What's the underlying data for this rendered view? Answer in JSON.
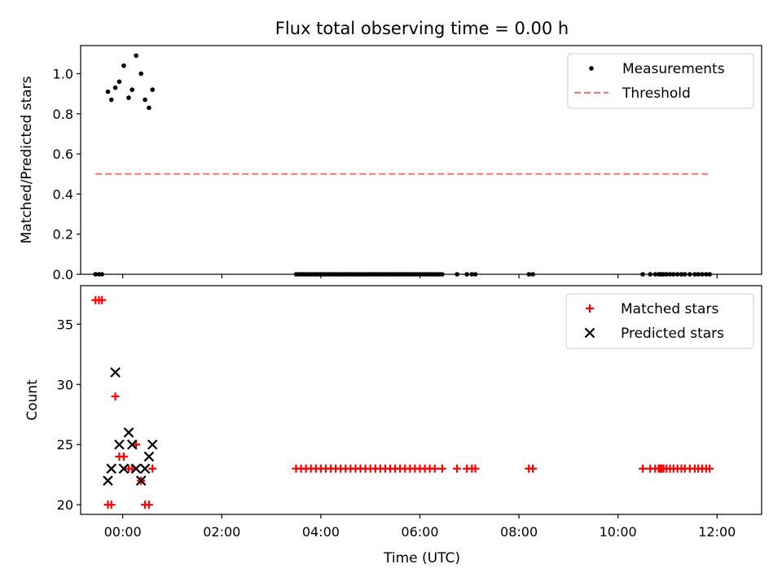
{
  "figure": {
    "title": "Flux total observing time = 0.00 h",
    "xlabel": "Time (UTC)"
  },
  "colors": {
    "measurement": "#000000",
    "threshold": "#ff7070",
    "matched": "#ff0000",
    "predicted": "#000000"
  },
  "chart_data": [
    {
      "type": "scatter",
      "title": "Flux total observing time = 0.00 h",
      "xlabel": "Time (UTC)",
      "ylabel": "Matched/Predicted stars",
      "xlim": [
        -0.85,
        12.9
      ],
      "ylim": [
        0,
        1.14
      ],
      "xticks": [
        0,
        2,
        4,
        6,
        8,
        10,
        12
      ],
      "xtick_labels": [
        "00:00",
        "02:00",
        "04:00",
        "06:00",
        "08:00",
        "10:00",
        "12:00"
      ],
      "yticks": [
        0.0,
        0.2,
        0.4,
        0.6,
        0.8,
        1.0
      ],
      "ytick_labels": [
        "0.0",
        "0.2",
        "0.4",
        "0.6",
        "0.8",
        "1.0"
      ],
      "legend_position": "top-right",
      "series": [
        {
          "name": "Measurements",
          "marker": "dot",
          "x": [
            -0.3,
            -0.23,
            -0.15,
            -0.07,
            0.02,
            0.12,
            0.19,
            0.27,
            0.37,
            0.45,
            0.53,
            0.6,
            -0.55,
            -0.48,
            -0.42,
            3.5,
            3.55,
            3.6,
            3.65,
            3.7,
            3.75,
            3.8,
            3.85,
            3.9,
            3.95,
            4.0,
            4.05,
            4.1,
            4.15,
            4.2,
            4.25,
            4.3,
            4.35,
            4.4,
            4.45,
            4.5,
            4.55,
            4.6,
            4.65,
            4.7,
            4.75,
            4.8,
            4.85,
            4.9,
            4.95,
            5.0,
            5.05,
            5.1,
            5.15,
            5.2,
            5.25,
            5.3,
            5.35,
            5.4,
            5.45,
            5.5,
            5.55,
            5.6,
            5.65,
            5.7,
            5.75,
            5.8,
            5.85,
            5.9,
            5.95,
            6.0,
            6.05,
            6.1,
            6.15,
            6.2,
            6.25,
            6.3,
            6.35,
            6.4,
            6.45,
            6.75,
            6.95,
            7.05,
            7.12,
            8.2,
            8.28,
            10.5,
            10.65,
            10.75,
            10.82,
            10.85,
            10.88,
            10.92,
            10.98,
            11.05,
            11.12,
            11.2,
            11.28,
            11.35,
            11.45,
            11.55,
            11.62,
            11.7,
            11.78,
            11.85
          ],
          "y": [
            0.91,
            0.87,
            0.93,
            0.96,
            1.04,
            0.88,
            0.92,
            1.09,
            1.0,
            0.87,
            0.83,
            0.92,
            0,
            0,
            0,
            0,
            0,
            0,
            0,
            0,
            0,
            0,
            0,
            0,
            0,
            0,
            0,
            0,
            0,
            0,
            0,
            0,
            0,
            0,
            0,
            0,
            0,
            0,
            0,
            0,
            0,
            0,
            0,
            0,
            0,
            0,
            0,
            0,
            0,
            0,
            0,
            0,
            0,
            0,
            0,
            0,
            0,
            0,
            0,
            0,
            0,
            0,
            0,
            0,
            0,
            0,
            0,
            0,
            0,
            0,
            0,
            0,
            0,
            0,
            0,
            0,
            0,
            0,
            0,
            0,
            0,
            0,
            0,
            0,
            0,
            0,
            0,
            0,
            0,
            0,
            0,
            0,
            0,
            0,
            0,
            0,
            0,
            0,
            0,
            0
          ]
        },
        {
          "name": "Threshold",
          "marker": "dashed-line",
          "x": [
            -0.55,
            11.85
          ],
          "y": [
            0.5,
            0.5
          ]
        }
      ]
    },
    {
      "type": "scatter",
      "xlabel": "Time (UTC)",
      "ylabel": "Count",
      "xlim": [
        -0.85,
        12.9
      ],
      "ylim": [
        19.2,
        38.2
      ],
      "xticks": [
        0,
        2,
        4,
        6,
        8,
        10,
        12
      ],
      "xtick_labels": [
        "00:00",
        "02:00",
        "04:00",
        "06:00",
        "08:00",
        "10:00",
        "12:00"
      ],
      "yticks": [
        20,
        25,
        30,
        35
      ],
      "ytick_labels": [
        "20",
        "25",
        "30",
        "35"
      ],
      "legend_position": "top-right",
      "series": [
        {
          "name": "Matched stars",
          "marker": "plus",
          "x": [
            -0.55,
            -0.48,
            -0.42,
            -0.3,
            -0.23,
            -0.15,
            -0.07,
            0.02,
            0.12,
            0.19,
            0.27,
            0.37,
            0.45,
            0.53,
            0.6,
            3.5,
            3.6,
            3.7,
            3.8,
            3.9,
            4.0,
            4.1,
            4.2,
            4.3,
            4.4,
            4.5,
            4.6,
            4.7,
            4.8,
            4.9,
            5.0,
            5.1,
            5.2,
            5.3,
            5.4,
            5.5,
            5.6,
            5.7,
            5.8,
            5.9,
            6.0,
            6.1,
            6.2,
            6.3,
            6.45,
            6.75,
            6.95,
            7.05,
            7.12,
            8.2,
            8.28,
            10.5,
            10.65,
            10.75,
            10.82,
            10.85,
            10.88,
            10.92,
            10.98,
            11.05,
            11.12,
            11.2,
            11.28,
            11.35,
            11.45,
            11.55,
            11.62,
            11.7,
            11.78,
            11.85
          ],
          "y": [
            37,
            37,
            37,
            20,
            20,
            29,
            24,
            24,
            23,
            23,
            25,
            22,
            20,
            20,
            23,
            23,
            23,
            23,
            23,
            23,
            23,
            23,
            23,
            23,
            23,
            23,
            23,
            23,
            23,
            23,
            23,
            23,
            23,
            23,
            23,
            23,
            23,
            23,
            23,
            23,
            23,
            23,
            23,
            23,
            23,
            23,
            23,
            23,
            23,
            23,
            23,
            23,
            23,
            23,
            23,
            23,
            23,
            23,
            23,
            23,
            23,
            23,
            23,
            23,
            23,
            23,
            23,
            23,
            23,
            23
          ]
        },
        {
          "name": "Predicted stars",
          "marker": "x",
          "x": [
            -0.3,
            -0.23,
            -0.15,
            -0.07,
            0.02,
            0.12,
            0.19,
            0.27,
            0.37,
            0.45,
            0.53,
            0.6
          ],
          "y": [
            22,
            23,
            31,
            25,
            23,
            26,
            25,
            23,
            22,
            23,
            24,
            25
          ]
        }
      ]
    }
  ]
}
